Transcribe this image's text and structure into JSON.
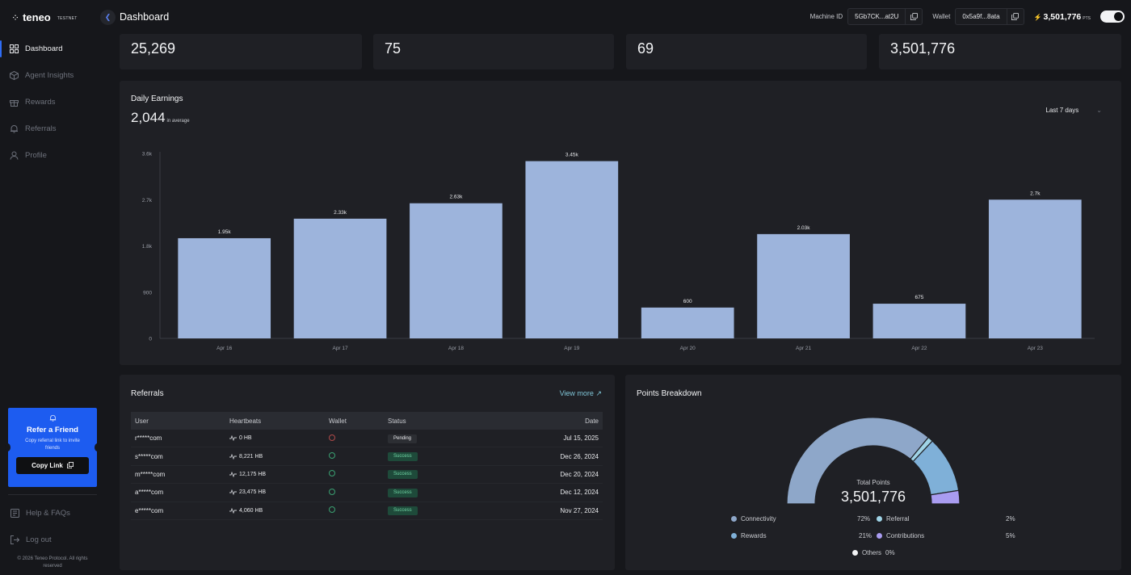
{
  "brand": {
    "name": "teneo",
    "badge": "TESTNET"
  },
  "sidebar": {
    "items": [
      {
        "label": "Dashboard",
        "icon": "grid-icon",
        "active": true
      },
      {
        "label": "Agent Insights",
        "icon": "cube-icon"
      },
      {
        "label": "Rewards",
        "icon": "gift-icon"
      },
      {
        "label": "Referrals",
        "icon": "bell-icon"
      },
      {
        "label": "Profile",
        "icon": "user-icon"
      }
    ],
    "refer": {
      "title": "Refer a Friend",
      "desc": "Copy referral link to invite friends",
      "button": "Copy Link"
    },
    "bottom": [
      {
        "label": "Help & FAQs",
        "icon": "help-icon"
      },
      {
        "label": "Log out",
        "icon": "logout-icon"
      }
    ],
    "copyright": "© 2026 Teneo Protocol. All rights reserved"
  },
  "header": {
    "title": "Dashboard",
    "machine_label": "Machine ID",
    "machine_id": "5Gb7CK...at2U",
    "wallet_label": "Wallet",
    "wallet": "0x5a9f...8ata",
    "points": "3,501,776",
    "points_unit": "PTS"
  },
  "stats": [
    "25,269",
    "75",
    "69",
    "3,501,776"
  ],
  "earnings": {
    "title": "Daily Earnings",
    "average": "2,044",
    "average_label": "in average",
    "range": "Last 7 days"
  },
  "chart_data": {
    "type": "bar",
    "categories": [
      "Apr 16",
      "Apr 17",
      "Apr 18",
      "Apr 19",
      "Apr 20",
      "Apr 21",
      "Apr 22",
      "Apr 23"
    ],
    "values": [
      1950,
      2330,
      2630,
      3450,
      600,
      2030,
      675,
      2700
    ],
    "data_labels": [
      "1.95k",
      "2.33k",
      "2.63k",
      "3.45k",
      "600",
      "2.03k",
      "675",
      "2.7k"
    ],
    "ylim": [
      0,
      3600
    ],
    "yticks": [
      0,
      900,
      1800,
      2700,
      3600
    ],
    "ytick_labels": [
      "0",
      "900",
      "1.8k",
      "2.7k",
      "3.6k"
    ],
    "bar_color": "#9db4dc"
  },
  "referrals": {
    "title": "Referrals",
    "view_more": "View more",
    "columns": [
      "User",
      "Heartbeats",
      "Wallet",
      "Status",
      "Date"
    ],
    "rows": [
      {
        "user": "r*****com",
        "hb": "0 HB",
        "wallet": "bad",
        "status": "Pending",
        "date": "Jul 15, 2025"
      },
      {
        "user": "s*****com",
        "hb": "8,221 HB",
        "wallet": "ok",
        "status": "Success",
        "date": "Dec 26, 2024"
      },
      {
        "user": "m*****com",
        "hb": "12,175 HB",
        "wallet": "ok",
        "status": "Success",
        "date": "Dec 20, 2024"
      },
      {
        "user": "a*****com",
        "hb": "23,475 HB",
        "wallet": "ok",
        "status": "Success",
        "date": "Dec 12, 2024"
      },
      {
        "user": "e*****com",
        "hb": "4,060 HB",
        "wallet": "ok",
        "status": "Success",
        "date": "Nov 27, 2024"
      }
    ]
  },
  "breakdown": {
    "title": "Points Breakdown",
    "total_label": "Total Points",
    "total": "3,501,776",
    "segments": [
      {
        "name": "Connectivity",
        "pct": "72%",
        "value": 72,
        "color": "#8ea7c9"
      },
      {
        "name": "Referral",
        "pct": "2%",
        "value": 2,
        "color": "#9fd3e6"
      },
      {
        "name": "Rewards",
        "pct": "21%",
        "value": 21,
        "color": "#7fb0d8"
      },
      {
        "name": "Contributions",
        "pct": "5%",
        "value": 5,
        "color": "#a99cf0"
      },
      {
        "name": "Others",
        "pct": "0%",
        "value": 0,
        "color": "#f2f3f5"
      }
    ]
  }
}
